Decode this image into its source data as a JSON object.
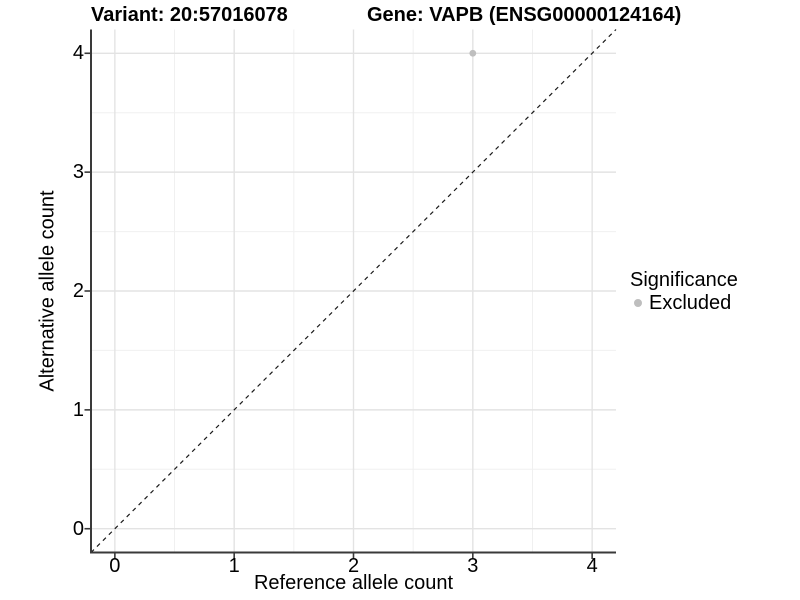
{
  "chart": {
    "xlabel": "Reference allele count",
    "ylabel": "Alternative allele count"
  },
  "legend": {
    "title": "Significance",
    "items": [
      {
        "label": "Excluded",
        "color": "#bebebe"
      }
    ]
  },
  "colors": {
    "background": "#ffffff",
    "text": "#000000",
    "axis_line": "#3a3a3a",
    "grid_major": "#e3e3e3",
    "grid_minor": "#f0f0f0",
    "point": "#bebebe",
    "reference_line": "#1a1a1a"
  },
  "chart_data": {
    "type": "scatter",
    "titles": [
      "Variant: 20:57016078",
      "Gene: VAPB (ENSG00000124164)"
    ],
    "xlabel": "Reference allele count",
    "ylabel": "Alternative allele count",
    "xlim": [
      -0.2,
      4.2
    ],
    "ylim": [
      -0.2,
      4.2
    ],
    "x_ticks": [
      0,
      1,
      2,
      3,
      4
    ],
    "y_ticks": [
      0,
      1,
      2,
      3,
      4
    ],
    "x_minor_ticks": [
      0.5,
      1.5,
      2.5,
      3.5
    ],
    "y_minor_ticks": [
      0.5,
      1.5,
      2.5,
      3.5
    ],
    "grid": true,
    "legend_position": "right",
    "legend_title": "Significance",
    "series": [
      {
        "name": "Excluded",
        "color": "#bebebe",
        "points": [
          {
            "x": 3,
            "y": 4
          }
        ]
      }
    ],
    "reference_line": {
      "type": "identity (y = x)",
      "style": "dashed",
      "color": "#1a1a1a",
      "from": [
        -0.2,
        -0.2
      ],
      "to": [
        4.2,
        4.2
      ]
    }
  }
}
